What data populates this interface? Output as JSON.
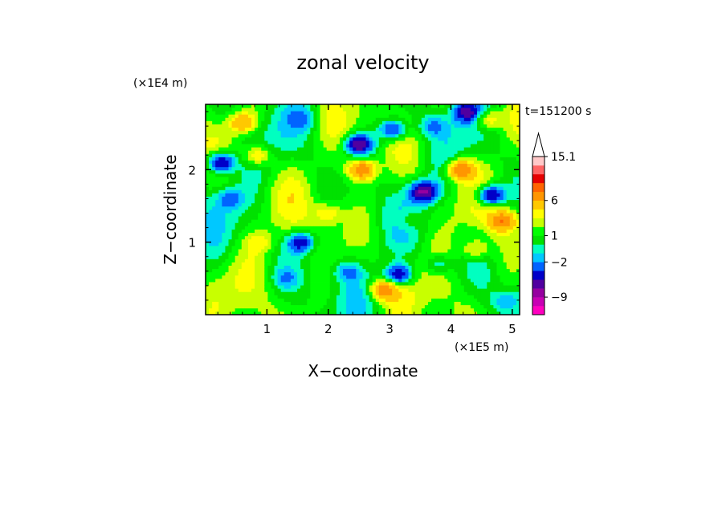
{
  "chart_data": {
    "type": "heatmap",
    "title": "zonal velocity",
    "xlabel": "X−coordinate",
    "ylabel": "Z−coordinate",
    "x_unit": "(×1E5 m)",
    "y_unit": "(×1E4 m)",
    "time_label": "t=151200 s",
    "xlim": [
      0,
      5.12
    ],
    "ylim": [
      0,
      2.9
    ],
    "x_ticks": [
      1,
      2,
      3,
      4,
      5
    ],
    "x_tick_labels": [
      "1",
      "2",
      "3",
      "4",
      "5"
    ],
    "y_ticks": [
      1,
      2
    ],
    "y_tick_labels": [
      "1",
      "2"
    ],
    "grid": false,
    "colorbar": {
      "levels": [
        -13,
        -11,
        -9,
        -7,
        -5,
        -3.5,
        -2,
        -1,
        0,
        1,
        2,
        3,
        4,
        6,
        8,
        10,
        12,
        15.1
      ],
      "colors": [
        "#ff00c0",
        "#c800b4",
        "#9600a0",
        "#5000a0",
        "#0000c8",
        "#0064ff",
        "#00c8ff",
        "#00ffc0",
        "#00e100",
        "#00ff00",
        "#c8ff00",
        "#ffff00",
        "#ffc800",
        "#ff9600",
        "#ff6400",
        "#e60000",
        "#ff6464",
        "#ffc8c8"
      ],
      "labels": [
        {
          "value": 15.1,
          "text": "15.1"
        },
        {
          "value": 6,
          "text": "6"
        },
        {
          "value": 1,
          "text": "1"
        },
        {
          "value": -2,
          "text": "−2"
        },
        {
          "value": -9,
          "text": "−9"
        }
      ],
      "extend": "max"
    },
    "field_features": [
      {
        "x": 0.25,
        "z": 2.1,
        "value": -8
      },
      {
        "x": 2.5,
        "z": 2.35,
        "value": -8
      },
      {
        "x": 3.05,
        "z": 2.55,
        "value": -6
      },
      {
        "x": 3.55,
        "z": 1.7,
        "value": -8
      },
      {
        "x": 4.65,
        "z": 1.65,
        "value": -8
      },
      {
        "x": 4.25,
        "z": 2.8,
        "value": -6
      },
      {
        "x": 1.55,
        "z": 1.0,
        "value": -6
      },
      {
        "x": 3.15,
        "z": 0.55,
        "value": -7
      },
      {
        "x": 0.6,
        "z": 2.65,
        "value": 5
      },
      {
        "x": 2.55,
        "z": 2.0,
        "value": 7
      },
      {
        "x": 4.15,
        "z": 2.0,
        "value": 7
      },
      {
        "x": 4.85,
        "z": 1.3,
        "value": 6
      },
      {
        "x": 4.6,
        "z": 2.7,
        "value": 4
      },
      {
        "x": 2.9,
        "z": 0.35,
        "value": 6
      },
      {
        "x": 0.85,
        "z": 2.2,
        "value": 4
      },
      {
        "x": 0.4,
        "z": 1.6,
        "value": -3
      },
      {
        "x": 2.3,
        "z": 0.6,
        "value": -3
      },
      {
        "x": 3.7,
        "z": 2.6,
        "value": -3
      },
      {
        "x": 3.8,
        "z": 0.7,
        "value": -3
      },
      {
        "x": 1.6,
        "z": 2.7,
        "value": -2.5
      },
      {
        "x": 1.3,
        "z": 0.5,
        "value": -2
      },
      {
        "x": 2.0,
        "z": 1.4,
        "value": 3
      },
      {
        "x": 4.4,
        "z": 0.9,
        "value": 3
      },
      {
        "x": 0.9,
        "z": 1.0,
        "value": 2
      },
      {
        "x": 3.3,
        "z": 1.3,
        "value": 2
      },
      {
        "x": 4.9,
        "z": 0.2,
        "value": -2.5
      }
    ]
  }
}
